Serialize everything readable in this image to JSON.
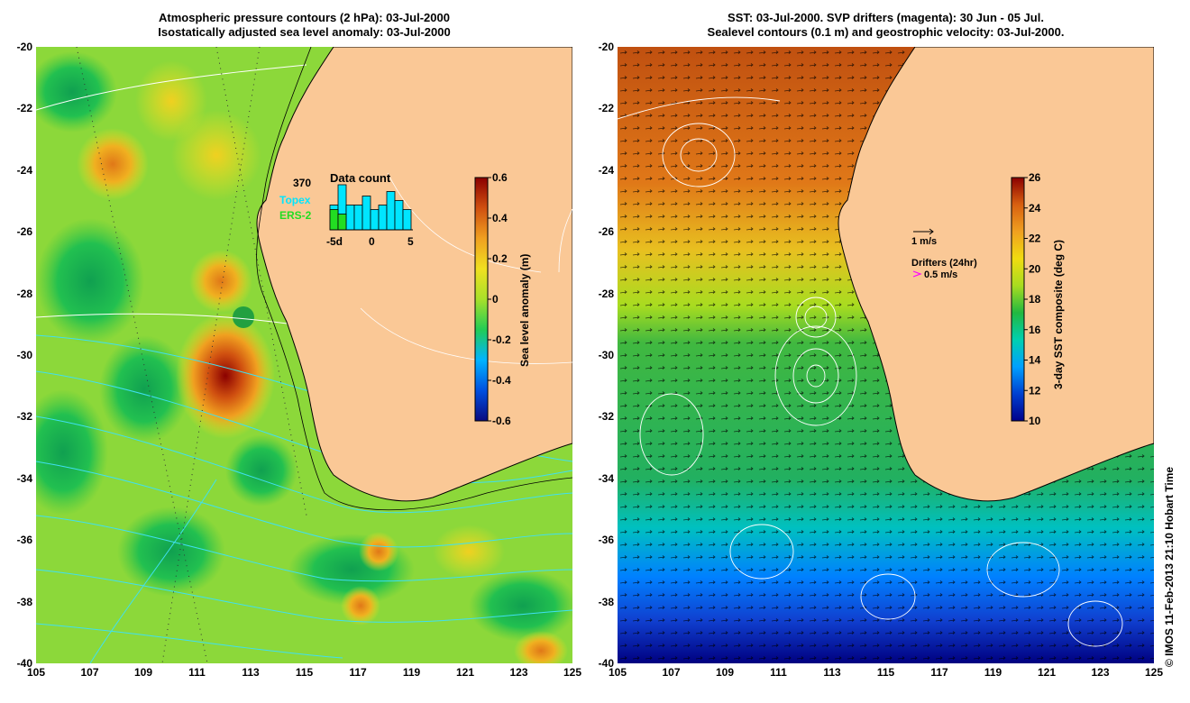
{
  "left": {
    "title1": "Atmospheric pressure contours (2 hPa): 03-Jul-2000",
    "title2": "Isostatically adjusted sea level anomaly: 03-Jul-2000",
    "colorbar_label": "Sea level anomaly (m)",
    "colorbar_ticks": [
      "0.6",
      "0.4",
      "0.2",
      "0",
      "-0.2",
      "-0.4",
      "-0.6"
    ],
    "inset": {
      "title": "Data count",
      "max_count": "370",
      "series": [
        "Topex",
        "ERS-2"
      ],
      "series_colors": [
        "#00e5ff",
        "#22dd22"
      ],
      "x_ticks": [
        "-5d",
        "0",
        "5"
      ],
      "topex_bars": [
        0.55,
        1.0,
        0.55,
        0.55,
        0.75,
        0.45,
        0.55,
        0.85,
        0.65,
        0.45
      ],
      "ers_bars": [
        0.45,
        0.35,
        0.0,
        0.0,
        0.0,
        0.0,
        0.0,
        0.0,
        0.0,
        0.0
      ]
    }
  },
  "right": {
    "title1": "SST: 03-Jul-2000. SVP drifters (magenta): 30 Jun - 05 Jul.",
    "title2": "Sealevel contours (0.1 m) and geostrophic velocity: 03-Jul-2000.",
    "colorbar_label": "3-day SST composite (deg C)",
    "colorbar_ticks": [
      "26",
      "24",
      "22",
      "20",
      "18",
      "16",
      "14",
      "12",
      "10"
    ],
    "legend_speed": "1 m/s",
    "legend_drifters": "Drifters (24hr)",
    "legend_drifter_speed": "0.5 m/s"
  },
  "axes": {
    "y_ticks": [
      "-20",
      "-22",
      "-24",
      "-26",
      "-28",
      "-30",
      "-32",
      "-34",
      "-36",
      "-38",
      "-40"
    ],
    "x_ticks": [
      "105",
      "107",
      "109",
      "111",
      "113",
      "115",
      "117",
      "119",
      "121",
      "123",
      "125"
    ]
  },
  "credit": "© IMOS 11-Feb-2013 21:10 Hobart Time",
  "colors": {
    "land": "#fac896",
    "sla_scale": [
      "#0a0a80",
      "#0050e0",
      "#00b4ff",
      "#22cc55",
      "#a8e02a",
      "#f0e020",
      "#f0a020",
      "#d05010",
      "#8b0000"
    ],
    "sst_scale": [
      "#00008b",
      "#0040d0",
      "#00a0ff",
      "#00d0b0",
      "#22b840",
      "#a8dc20",
      "#f0dc10",
      "#f0a020",
      "#d86010",
      "#8b0000"
    ]
  }
}
